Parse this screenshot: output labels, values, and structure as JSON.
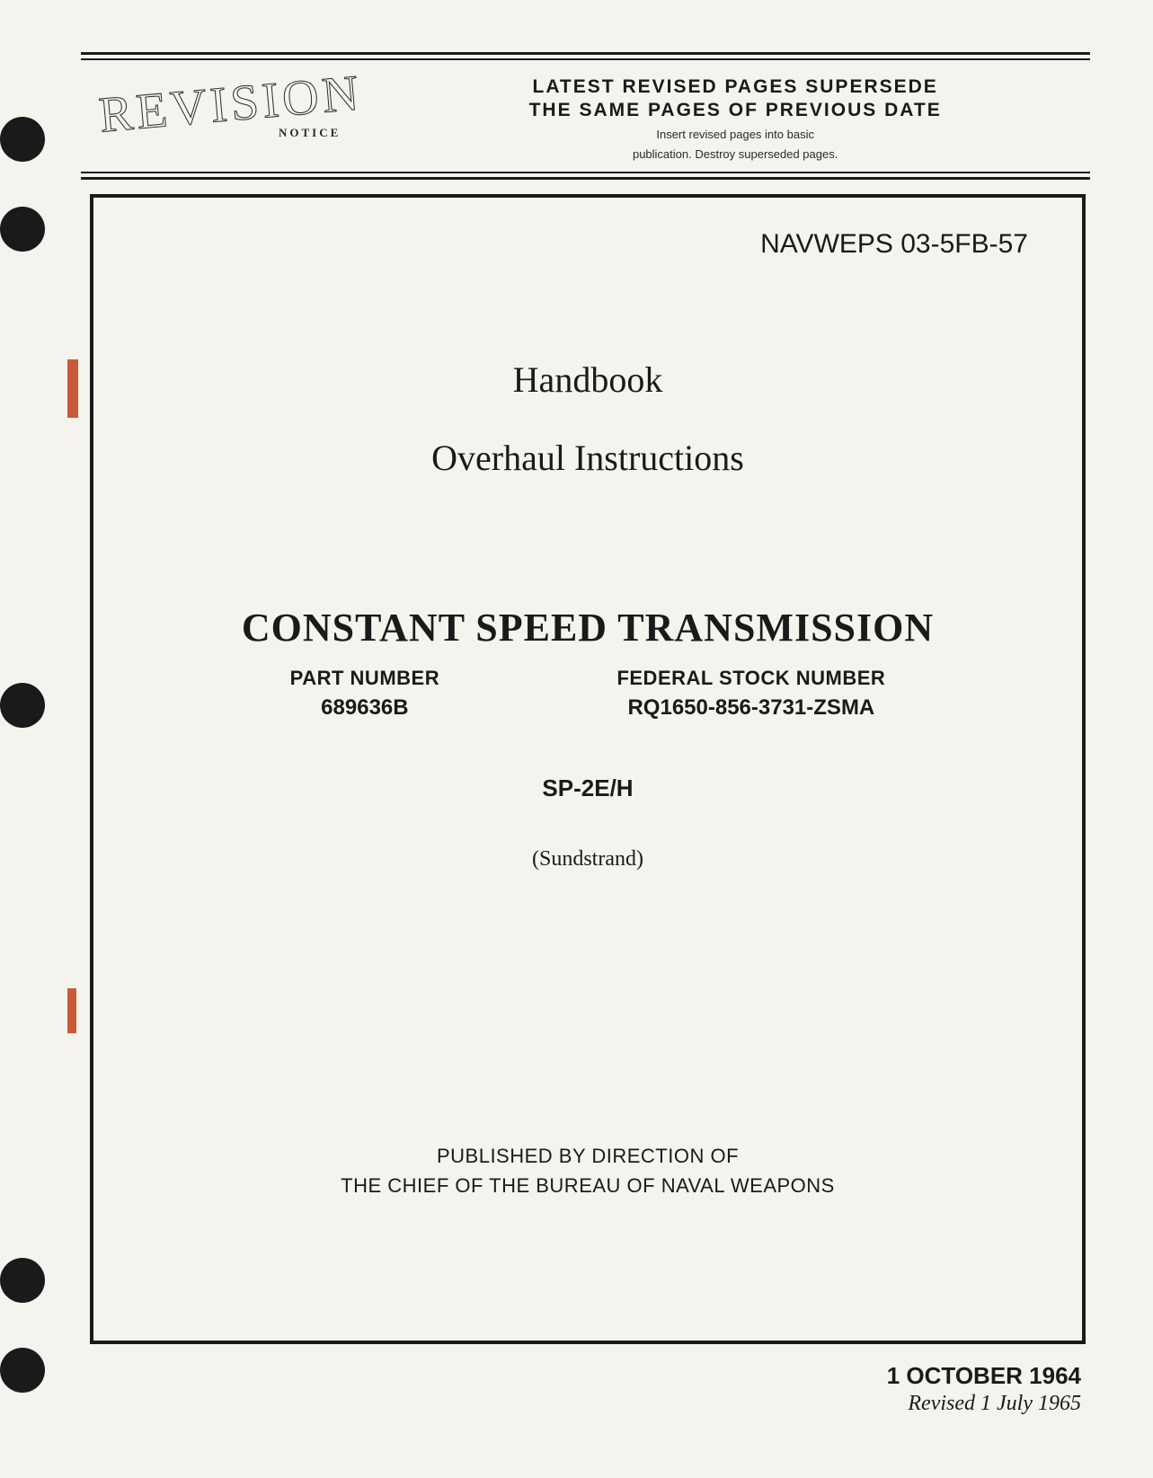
{
  "page": {
    "background_color": "#f5f3ed",
    "text_color": "#1a1a1a"
  },
  "header": {
    "revision_label": "REVISION",
    "notice_label": "NOTICE",
    "supersede_line1": "LATEST REVISED PAGES SUPERSEDE",
    "supersede_line2": "THE SAME PAGES OF PREVIOUS DATE",
    "supersede_sub1": "Insert revised pages into basic",
    "supersede_sub2": "publication. Destroy superseded pages."
  },
  "document": {
    "doc_number": "NAVWEPS 03-5FB-57",
    "title_line1": "Handbook",
    "title_line2": "Overhaul Instructions",
    "main_title": "CONSTANT SPEED TRANSMISSION",
    "part_number_label": "PART NUMBER",
    "part_number_value": "689636B",
    "federal_stock_label": "FEDERAL STOCK NUMBER",
    "federal_stock_value": "RQ1650-856-3731-ZSMA",
    "sp_code": "SP-2E/H",
    "manufacturer": "(Sundstrand)",
    "publisher_line1": "PUBLISHED BY DIRECTION OF",
    "publisher_line2": "THE CHIEF OF THE BUREAU OF NAVAL WEAPONS"
  },
  "dates": {
    "original_date": "1 OCTOBER 1964",
    "revised_date": "Revised 1 July 1965"
  },
  "styling": {
    "title_fontsize": 40,
    "main_title_fontsize": 44,
    "doc_number_fontsize": 30,
    "label_fontsize": 22,
    "border_width": 4,
    "rule_color": "#1a1a1a"
  }
}
